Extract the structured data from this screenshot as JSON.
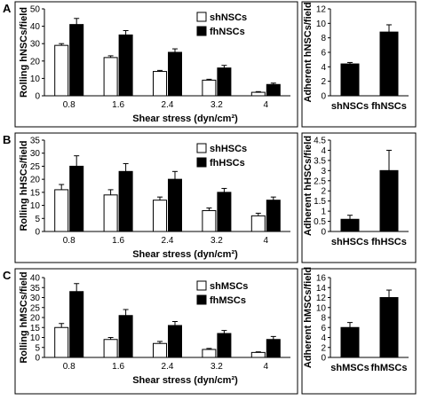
{
  "panels": [
    {
      "label": "A"
    },
    {
      "label": "B"
    },
    {
      "label": "C"
    }
  ],
  "colors": {
    "sh": "#ffffff",
    "fh": "#000000",
    "stroke": "#000000"
  },
  "chart_data": [
    {
      "type": "bar",
      "panel": "A",
      "xlabel": "Shear stress (dyn/cm²)",
      "ylabel": "Rolling hNSCs/field",
      "categories": [
        "0.8",
        "1.6",
        "2.4",
        "3.2",
        "4"
      ],
      "ylim": [
        0,
        50
      ],
      "yticks": [
        0,
        10,
        20,
        30,
        40,
        50
      ],
      "legend_position": "top-right",
      "series": [
        {
          "name": "shNSCs",
          "values": [
            29,
            22,
            14,
            9,
            2
          ],
          "err": [
            1,
            1,
            0.6,
            0.5,
            0.4
          ]
        },
        {
          "name": "fhNSCs",
          "values": [
            41,
            35,
            25,
            16,
            6.5
          ],
          "err": [
            3.5,
            2.5,
            2,
            1.5,
            0.8
          ]
        }
      ]
    },
    {
      "type": "bar",
      "panel": "A",
      "ylabel": "Adherent hNSCs/field",
      "categories": [
        "shNSCs",
        "fhNSCs"
      ],
      "ylim": [
        0,
        12
      ],
      "yticks": [
        0,
        2,
        4,
        6,
        8,
        10,
        12
      ],
      "values": [
        4.4,
        8.8
      ],
      "err": [
        0.2,
        1
      ]
    },
    {
      "type": "bar",
      "panel": "B",
      "xlabel": "Shear stress (dyn/cm²)",
      "ylabel": "Rolling hHSCs/field",
      "categories": [
        "0.8",
        "1.6",
        "2.4",
        "3.2",
        "4"
      ],
      "ylim": [
        0,
        35
      ],
      "yticks": [
        0,
        5,
        10,
        15,
        20,
        25,
        30,
        35
      ],
      "legend_position": "top-right",
      "series": [
        {
          "name": "shHSCs",
          "values": [
            16,
            14,
            12,
            8,
            6
          ],
          "err": [
            2,
            2,
            1.2,
            1,
            1
          ]
        },
        {
          "name": "fhHSCs",
          "values": [
            25,
            23,
            20,
            15,
            12
          ],
          "err": [
            4,
            3,
            3,
            1.5,
            1.2
          ]
        }
      ]
    },
    {
      "type": "bar",
      "panel": "B",
      "ylabel": "Adherent hHSCs/field",
      "categories": [
        "shHSCs",
        "fhHSCs"
      ],
      "ylim": [
        0,
        4.5
      ],
      "yticks": [
        0,
        0.5,
        1,
        1.5,
        2,
        2.5,
        3,
        3.5,
        4,
        4.5
      ],
      "values": [
        0.6,
        3
      ],
      "err": [
        0.2,
        1
      ]
    },
    {
      "type": "bar",
      "panel": "C",
      "xlabel": "Shear stress (dyn/cm²)",
      "ylabel": "Rolling hMSCs/field",
      "categories": [
        "0.8",
        "1.6",
        "2.4",
        "3.2",
        "4"
      ],
      "ylim": [
        0,
        40
      ],
      "yticks": [
        0,
        5,
        10,
        15,
        20,
        25,
        30,
        35,
        40
      ],
      "legend_position": "right",
      "series": [
        {
          "name": "shMSCs",
          "values": [
            15,
            9,
            7,
            4,
            2.5
          ],
          "err": [
            2,
            1,
            1,
            0.5,
            0.3
          ]
        },
        {
          "name": "fhMSCs",
          "values": [
            33,
            21,
            16,
            12,
            9
          ],
          "err": [
            4,
            3,
            2,
            1.5,
            1.5
          ]
        }
      ]
    },
    {
      "type": "bar",
      "panel": "C",
      "ylabel": "Adherent hMSCs/field",
      "categories": [
        "shMSCs",
        "fhMSCs"
      ],
      "ylim": [
        0,
        16
      ],
      "yticks": [
        0,
        2,
        4,
        6,
        8,
        10,
        12,
        14,
        16
      ],
      "values": [
        6,
        12
      ],
      "err": [
        1,
        1.5
      ]
    }
  ]
}
